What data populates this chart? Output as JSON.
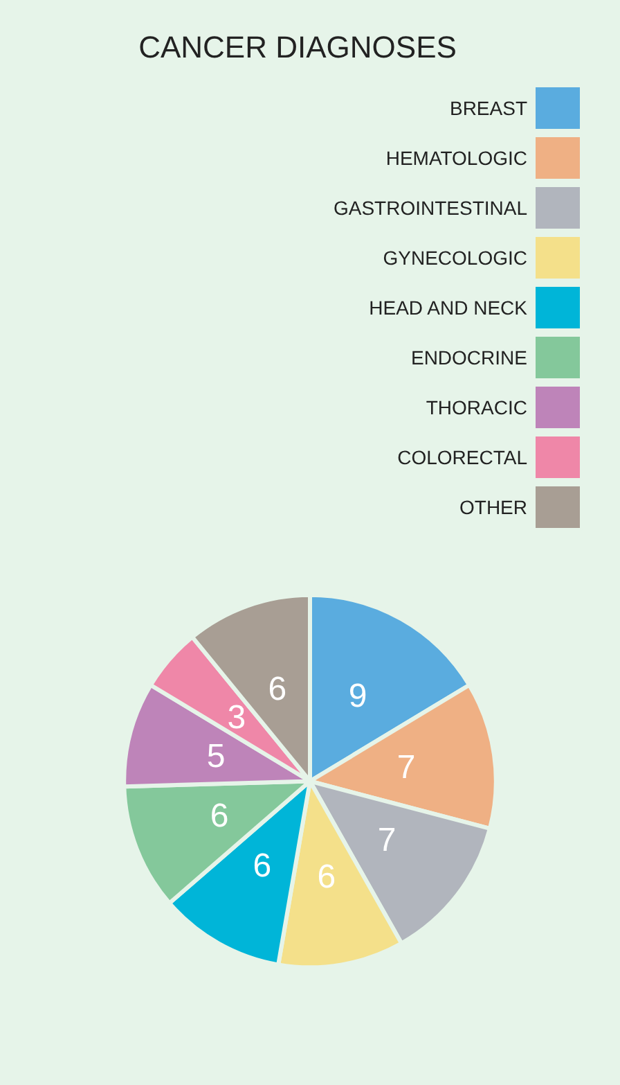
{
  "chart_data": {
    "type": "pie",
    "title": "CANCER DIAGNOSES",
    "categories": [
      "BREAST",
      "HEMATOLOGIC",
      "GASTROINTESTINAL",
      "GYNECOLOGIC",
      "HEAD AND NECK",
      "ENDOCRINE",
      "THORACIC",
      "COLORECTAL",
      "OTHER"
    ],
    "values": [
      9,
      7,
      7,
      6,
      6,
      6,
      5,
      3,
      6
    ],
    "colors": [
      "#5aacdf",
      "#efb084",
      "#b1b5bd",
      "#f4e08a",
      "#00b5d8",
      "#84c89b",
      "#be84b9",
      "#ef87a8",
      "#a89e94"
    ],
    "data_labels": true,
    "legend": "top right"
  }
}
